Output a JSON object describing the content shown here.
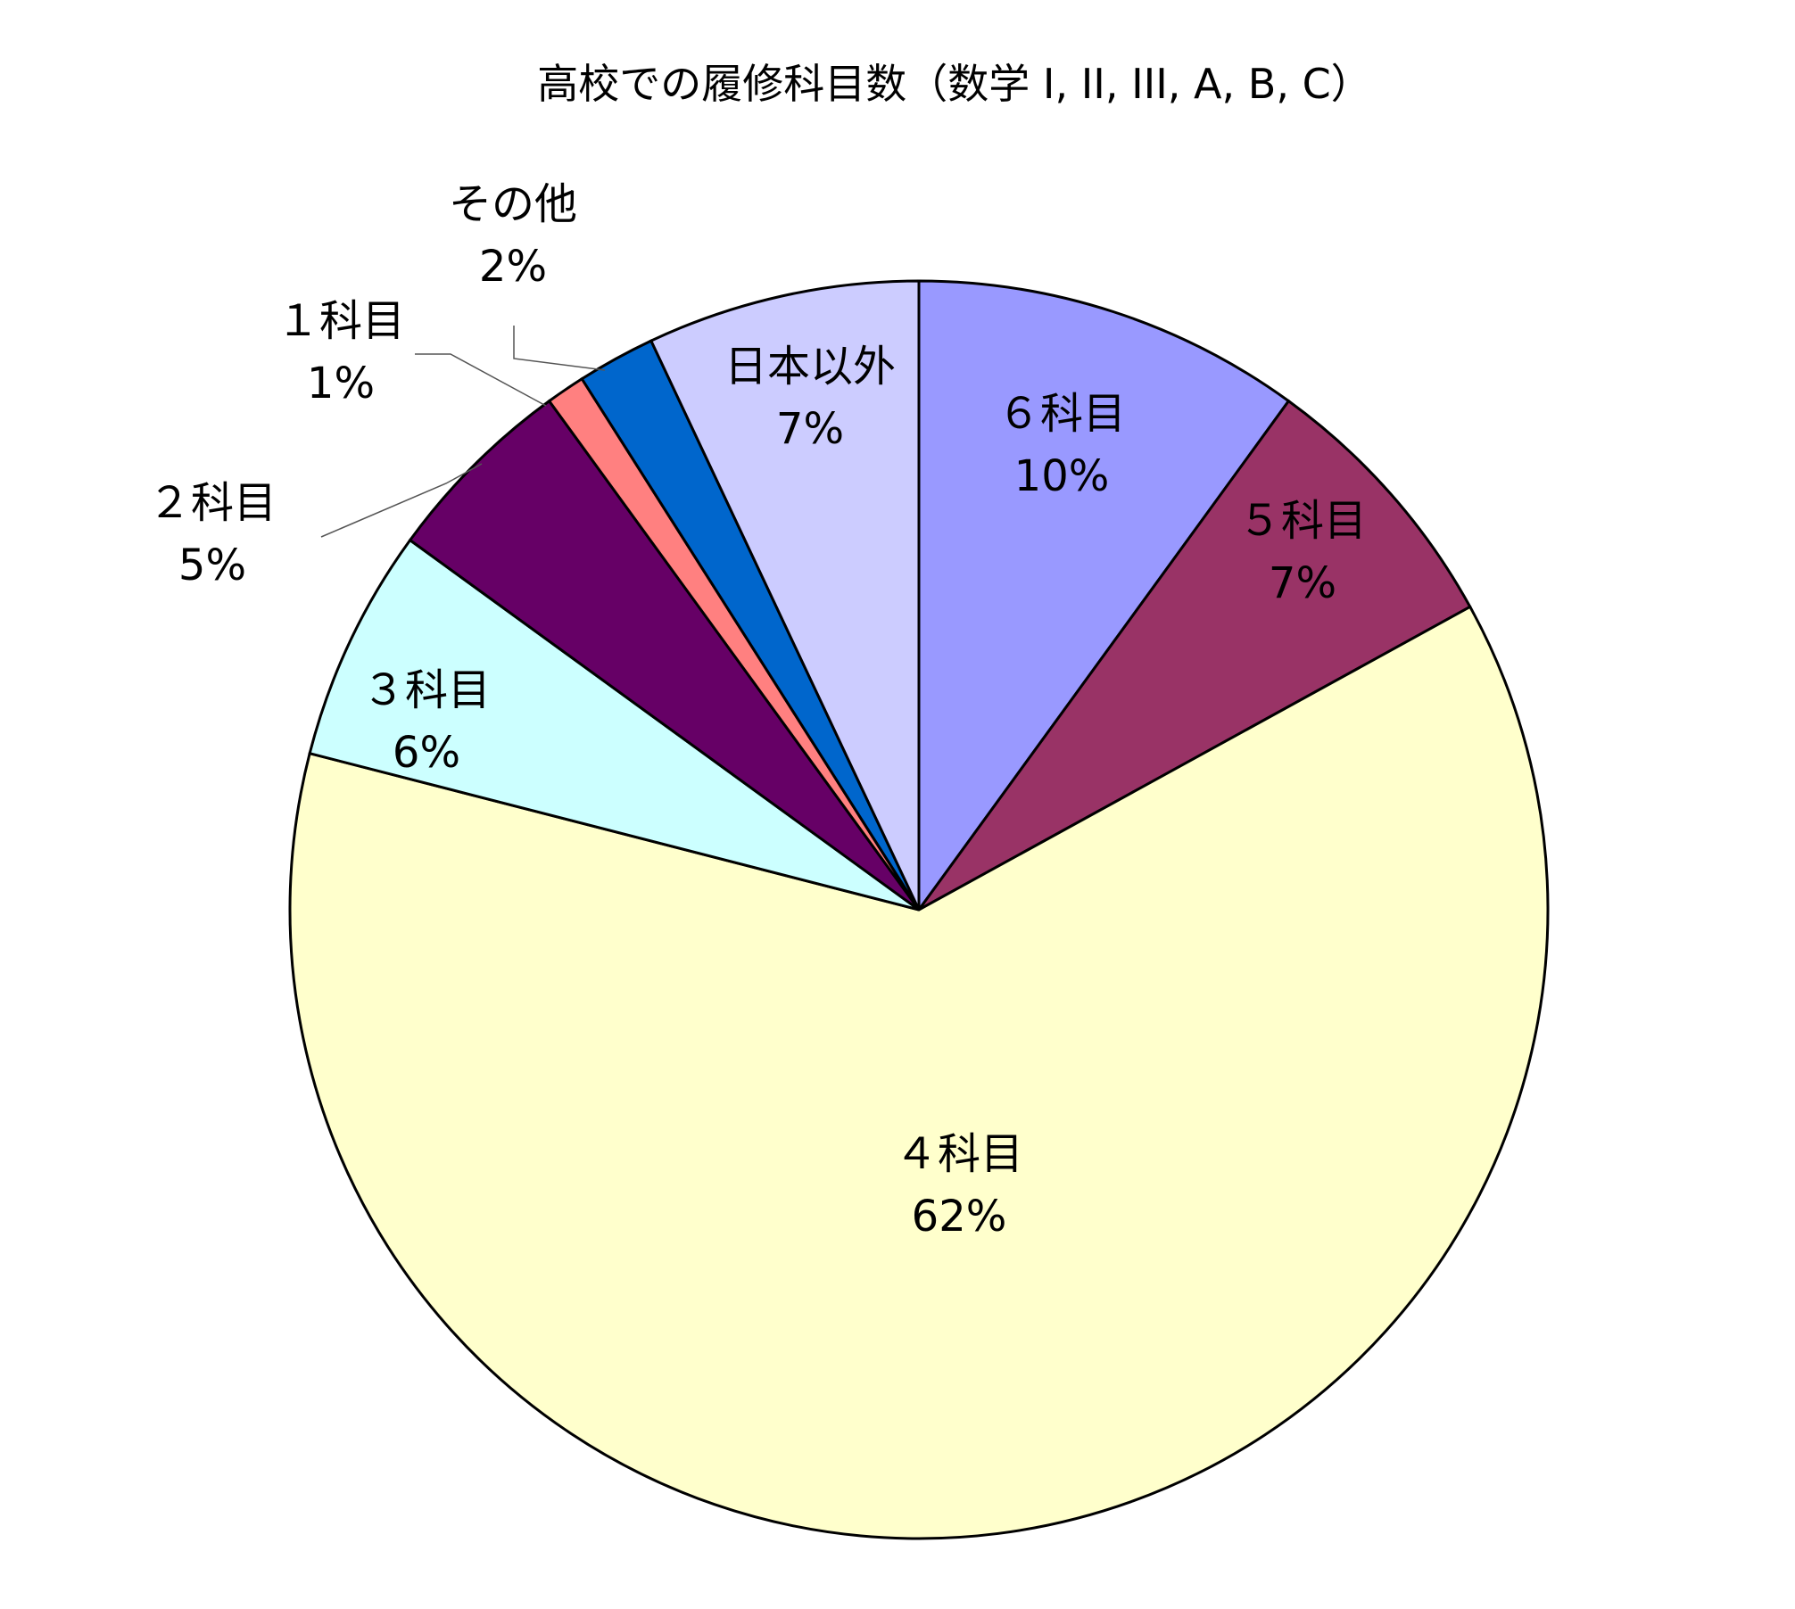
{
  "chart_data": {
    "type": "pie",
    "title": "高校での履修科目数（数学 I, II, III, A, B, C）",
    "start_angle_deg": 0,
    "direction": "clockwise",
    "slices": [
      {
        "name": "６科目",
        "value": 10,
        "label": "10%",
        "color": "#9999ff"
      },
      {
        "name": "５科目",
        "value": 7,
        "label": "7%",
        "color": "#993366"
      },
      {
        "name": "４科目",
        "value": 62,
        "label": "62%",
        "color": "#ffffcc"
      },
      {
        "name": "３科目",
        "value": 6,
        "label": "6%",
        "color": "#ccffff"
      },
      {
        "name": "２科目",
        "value": 5,
        "label": "5%",
        "color": "#660066"
      },
      {
        "name": "１科目",
        "value": 1,
        "label": "1%",
        "color": "#ff8080"
      },
      {
        "name": "その他",
        "value": 2,
        "label": "2%",
        "color": "#0066cc"
      },
      {
        "name": "日本以外",
        "value": 7,
        "label": "7%",
        "color": "#ccccff"
      }
    ],
    "legend": "none"
  }
}
